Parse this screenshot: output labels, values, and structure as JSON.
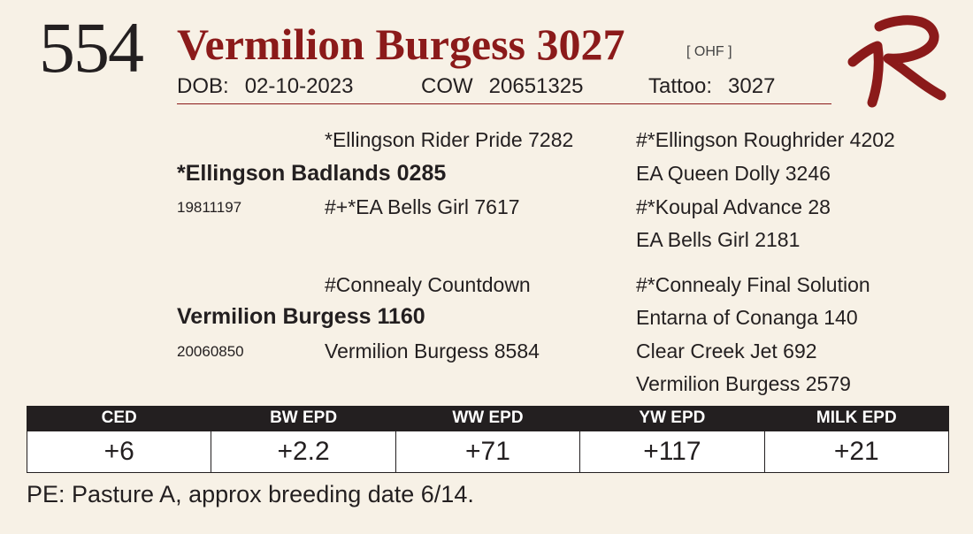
{
  "header": {
    "lot_number": "554",
    "animal_name": "Vermilion Burgess 3027",
    "tag": "[ OHF ]",
    "dob_label": "DOB:",
    "dob_value": "02-10-2023",
    "type_label": "COW",
    "registration": "20651325",
    "tattoo_label": "Tattoo:",
    "tattoo_value": "3027"
  },
  "logo": {
    "icon": "vr-brand-icon",
    "color": "#8b1a1a"
  },
  "pedigree": {
    "sire": {
      "name": "*Ellingson Badlands 0285",
      "reg": "19811197",
      "sire": "*Ellingson Rider Pride 7282",
      "dam": "#+*EA Bells Girl 7617",
      "sire_sire": "#*Ellingson Roughrider 4202",
      "sire_dam": "EA Queen Dolly 3246",
      "dam_sire": "#*Koupal Advance 28",
      "dam_dam": "EA Bells Girl 2181"
    },
    "dam": {
      "name": "Vermilion Burgess 1160",
      "reg": "20060850",
      "sire": "#Connealy Countdown",
      "dam": "Vermilion Burgess 8584",
      "sire_sire": "#*Connealy Final Solution",
      "sire_dam": "Entarna of Conanga 140",
      "dam_sire": "Clear Creek Jet 692",
      "dam_dam": "Vermilion Burgess 2579"
    }
  },
  "epds": {
    "headers": [
      "CED",
      "BW EPD",
      "WW EPD",
      "YW EPD",
      "MILK EPD"
    ],
    "values": [
      "+6",
      "+2.2",
      "+71",
      "+117",
      "+21"
    ]
  },
  "note": "PE: Pasture A, approx breeding date 6/14.",
  "colors": {
    "accent": "#8b1a1a",
    "background": "#f7f1e6",
    "dark": "#231f20"
  }
}
